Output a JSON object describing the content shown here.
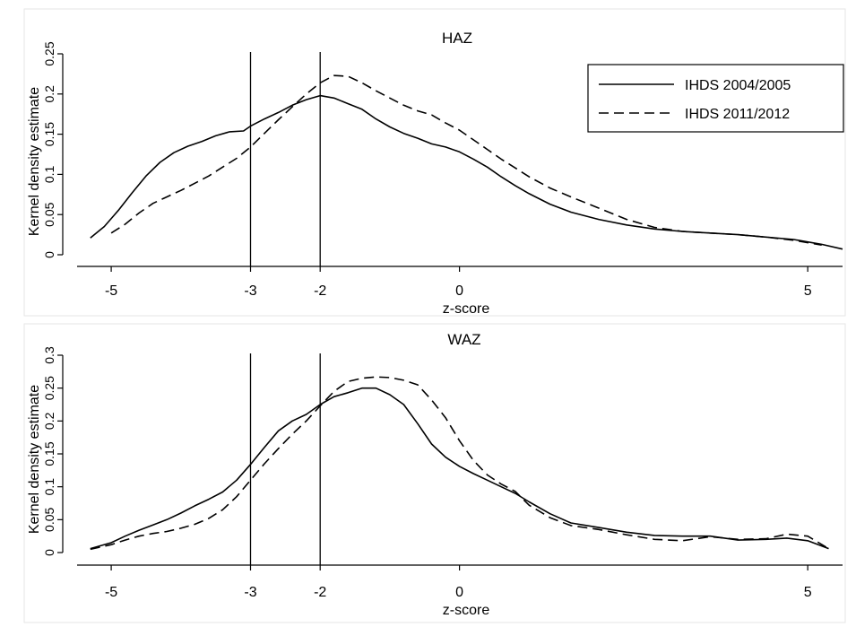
{
  "figure": {
    "legend": [
      {
        "label": "IHDS 2004/2005",
        "style": "solid"
      },
      {
        "label": "IHDS 2011/2012",
        "style": "dashed"
      }
    ]
  },
  "chart_data": [
    {
      "type": "line",
      "title": "HAZ",
      "xlabel": "z-score",
      "ylabel": "Kernel density estimate",
      "xlim": [
        -5.4,
        5.5
      ],
      "ylim": [
        0,
        0.25
      ],
      "xticks": [
        -5,
        -3,
        -2,
        0,
        5
      ],
      "xtick_labels": [
        "-5",
        "-3",
        "-2",
        "0",
        "5"
      ],
      "yticks": [
        0,
        0.05,
        0.1,
        0.15,
        0.2,
        0.25
      ],
      "ytick_labels": [
        "0",
        "0.05",
        "0.1",
        "0.15",
        "0.2",
        "0.25"
      ],
      "vlines": [
        -3,
        -2
      ],
      "grid": false,
      "legend_position": "top-right",
      "series": [
        {
          "name": "IHDS 2004/2005",
          "style": "solid",
          "x": [
            -5.3,
            -5.1,
            -4.9,
            -4.7,
            -4.5,
            -4.3,
            -4.1,
            -3.9,
            -3.7,
            -3.5,
            -3.3,
            -3.1,
            -3.0,
            -2.8,
            -2.6,
            -2.4,
            -2.2,
            -2.0,
            -1.8,
            -1.6,
            -1.4,
            -1.2,
            -1.0,
            -0.8,
            -0.6,
            -0.4,
            -0.2,
            0.0,
            0.2,
            0.4,
            0.6,
            0.8,
            1.0,
            1.3,
            1.6,
            2.0,
            2.4,
            2.8,
            3.2,
            3.6,
            4.0,
            4.4,
            4.8,
            5.2,
            5.5
          ],
          "values": [
            0.021,
            0.035,
            0.055,
            0.077,
            0.098,
            0.115,
            0.127,
            0.135,
            0.141,
            0.148,
            0.153,
            0.154,
            0.16,
            0.169,
            0.177,
            0.186,
            0.193,
            0.198,
            0.195,
            0.188,
            0.181,
            0.169,
            0.159,
            0.151,
            0.145,
            0.138,
            0.134,
            0.128,
            0.119,
            0.109,
            0.097,
            0.086,
            0.076,
            0.063,
            0.053,
            0.044,
            0.037,
            0.032,
            0.029,
            0.027,
            0.025,
            0.022,
            0.019,
            0.013,
            0.007
          ]
        },
        {
          "name": "IHDS 2011/2012",
          "style": "dashed",
          "x": [
            -5.0,
            -4.8,
            -4.6,
            -4.4,
            -4.2,
            -4.0,
            -3.8,
            -3.6,
            -3.4,
            -3.2,
            -3.0,
            -2.8,
            -2.6,
            -2.4,
            -2.2,
            -2.0,
            -1.8,
            -1.6,
            -1.4,
            -1.2,
            -1.0,
            -0.8,
            -0.6,
            -0.4,
            -0.2,
            0.0,
            0.2,
            0.4,
            0.6,
            0.8,
            1.0,
            1.3,
            1.6,
            2.0,
            2.4,
            2.8,
            3.2,
            3.6,
            4.0,
            4.4,
            4.8,
            5.2
          ],
          "values": [
            0.027,
            0.038,
            0.052,
            0.064,
            0.072,
            0.08,
            0.089,
            0.098,
            0.109,
            0.12,
            0.134,
            0.151,
            0.168,
            0.184,
            0.2,
            0.214,
            0.223,
            0.222,
            0.214,
            0.204,
            0.195,
            0.186,
            0.179,
            0.174,
            0.164,
            0.155,
            0.143,
            0.131,
            0.119,
            0.108,
            0.097,
            0.083,
            0.072,
            0.058,
            0.044,
            0.034,
            0.029,
            0.027,
            0.025,
            0.022,
            0.018,
            0.012
          ]
        }
      ]
    },
    {
      "type": "line",
      "title": "WAZ",
      "xlabel": "z-score",
      "ylabel": "Kernel density estimate",
      "xlim": [
        -5.4,
        5.5
      ],
      "ylim": [
        0,
        0.3
      ],
      "xticks": [
        -5,
        -3,
        -2,
        0,
        5
      ],
      "xtick_labels": [
        "-5",
        "-3",
        "-2",
        "0",
        "5"
      ],
      "yticks": [
        0,
        0.05,
        0.1,
        0.15,
        0.2,
        0.25,
        0.3
      ],
      "ytick_labels": [
        "0",
        "0.05",
        "0.1",
        "0.15",
        "0.2",
        "0.25",
        "0.3"
      ],
      "vlines": [
        -3,
        -2
      ],
      "grid": false,
      "series": [
        {
          "name": "IHDS 2004/2005",
          "style": "solid",
          "x": [
            -5.3,
            -5.0,
            -4.8,
            -4.6,
            -4.4,
            -4.2,
            -4.0,
            -3.8,
            -3.6,
            -3.4,
            -3.2,
            -3.0,
            -2.8,
            -2.6,
            -2.4,
            -2.2,
            -2.0,
            -1.8,
            -1.6,
            -1.4,
            -1.2,
            -1.0,
            -0.8,
            -0.6,
            -0.4,
            -0.2,
            0.0,
            0.2,
            0.4,
            0.6,
            0.8,
            1.0,
            1.3,
            1.6,
            2.0,
            2.4,
            2.8,
            3.2,
            3.6,
            4.0,
            4.4,
            4.7,
            5.0,
            5.3
          ],
          "values": [
            0.006,
            0.015,
            0.025,
            0.034,
            0.042,
            0.05,
            0.06,
            0.071,
            0.081,
            0.092,
            0.11,
            0.134,
            0.16,
            0.185,
            0.2,
            0.21,
            0.225,
            0.237,
            0.243,
            0.25,
            0.25,
            0.24,
            0.225,
            0.196,
            0.165,
            0.145,
            0.131,
            0.12,
            0.11,
            0.1,
            0.09,
            0.077,
            0.059,
            0.045,
            0.038,
            0.031,
            0.026,
            0.025,
            0.025,
            0.019,
            0.02,
            0.022,
            0.018,
            0.006
          ]
        },
        {
          "name": "IHDS 2011/2012",
          "style": "dashed",
          "x": [
            -5.3,
            -5.0,
            -4.8,
            -4.6,
            -4.4,
            -4.2,
            -4.0,
            -3.8,
            -3.6,
            -3.4,
            -3.2,
            -3.0,
            -2.8,
            -2.6,
            -2.4,
            -2.2,
            -2.0,
            -1.8,
            -1.6,
            -1.4,
            -1.2,
            -1.0,
            -0.8,
            -0.6,
            -0.4,
            -0.2,
            0.0,
            0.2,
            0.4,
            0.6,
            0.8,
            1.0,
            1.3,
            1.6,
            2.0,
            2.4,
            2.8,
            3.2,
            3.6,
            4.0,
            4.4,
            4.7,
            5.0,
            5.3
          ],
          "values": [
            0.005,
            0.012,
            0.019,
            0.025,
            0.029,
            0.032,
            0.037,
            0.043,
            0.052,
            0.065,
            0.085,
            0.11,
            0.135,
            0.158,
            0.18,
            0.2,
            0.223,
            0.245,
            0.26,
            0.265,
            0.267,
            0.266,
            0.262,
            0.255,
            0.232,
            0.205,
            0.17,
            0.14,
            0.118,
            0.104,
            0.093,
            0.072,
            0.053,
            0.041,
            0.035,
            0.027,
            0.02,
            0.018,
            0.024,
            0.02,
            0.021,
            0.028,
            0.025,
            0.006
          ]
        }
      ]
    }
  ]
}
